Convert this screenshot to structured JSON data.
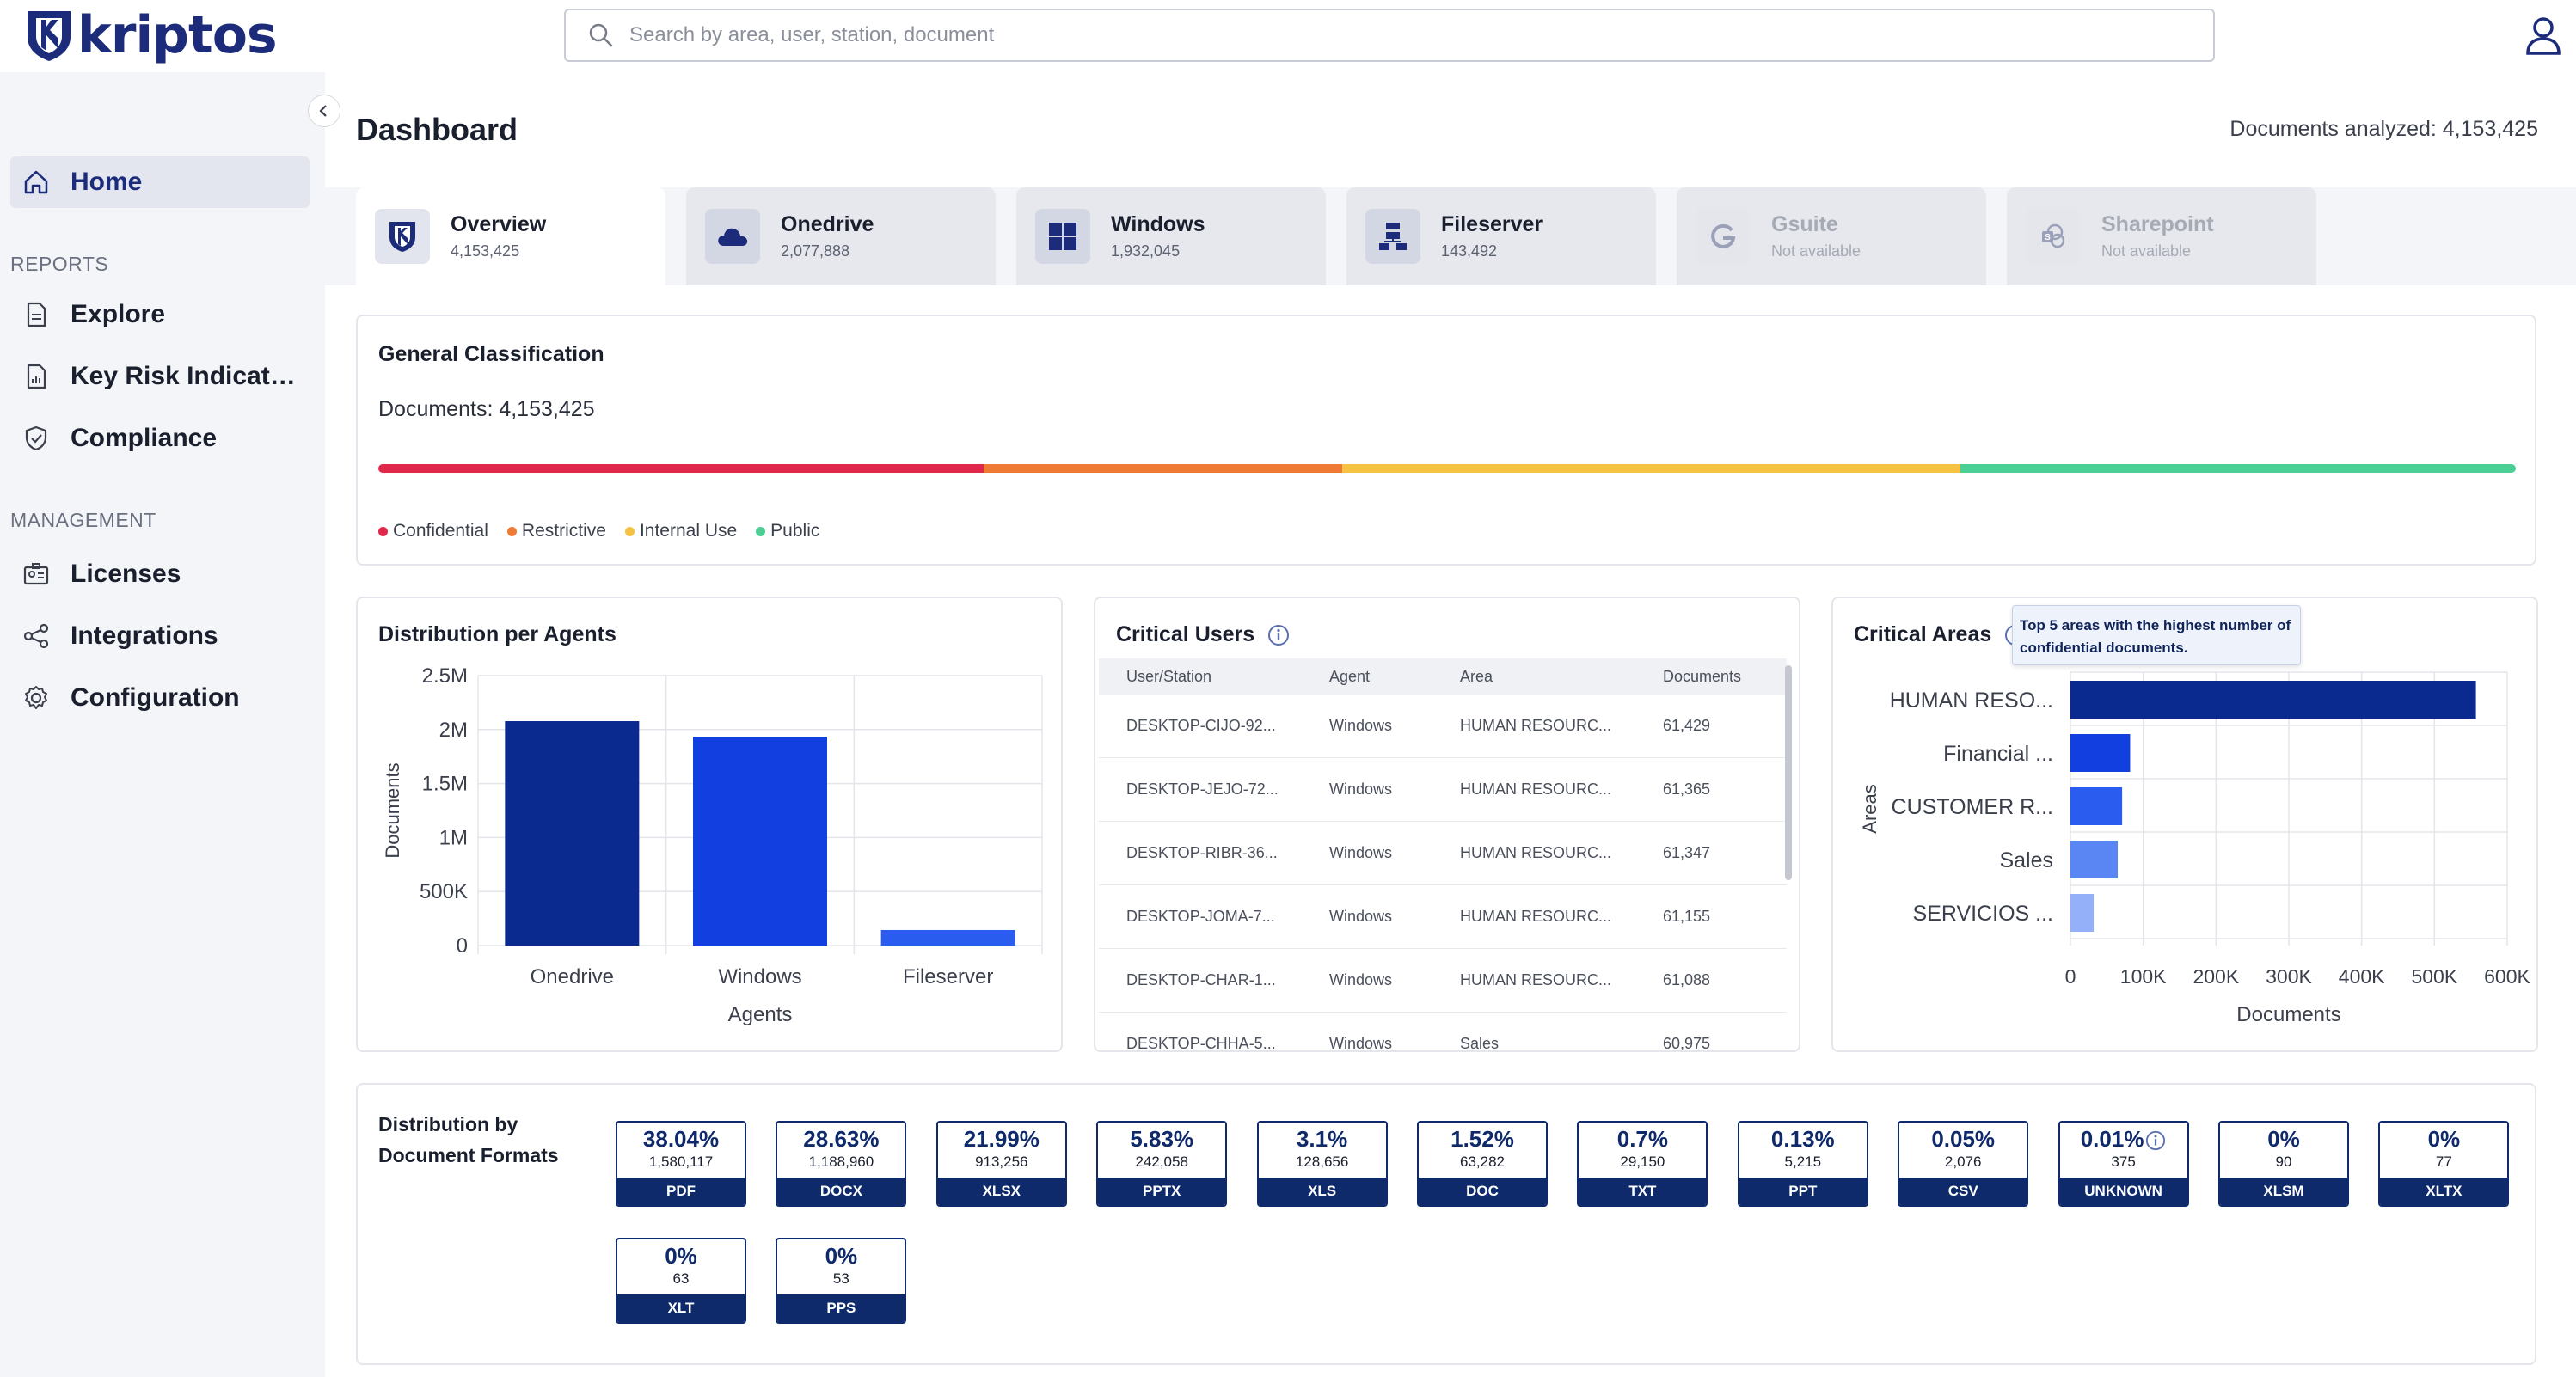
{
  "app": {
    "brand": "kriptos",
    "search_placeholder": "Search by area, user, station, document"
  },
  "sidebar": {
    "home": "Home",
    "reports_section": "REPORTS",
    "reports": [
      "Explore",
      "Key Risk Indicato...",
      "Compliance"
    ],
    "management_section": "MANAGEMENT",
    "management": [
      "Licenses",
      "Integrations",
      "Configuration"
    ]
  },
  "header": {
    "title": "Dashboard",
    "documents_analyzed": "Documents analyzed: 4,153,425"
  },
  "tabs": [
    {
      "name": "Overview",
      "sub": "4,153,425",
      "icon": "shield-icon"
    },
    {
      "name": "Onedrive",
      "sub": "2,077,888",
      "icon": "cloud-icon"
    },
    {
      "name": "Windows",
      "sub": "1,932,045",
      "icon": "windows-icon"
    },
    {
      "name": "Fileserver",
      "sub": "143,492",
      "icon": "server-icon"
    },
    {
      "name": "Gsuite",
      "sub": "Not available",
      "icon": "google-icon"
    },
    {
      "name": "Sharepoint",
      "sub": "Not available",
      "icon": "sharepoint-icon"
    }
  ],
  "general_classification": {
    "title": "General Classification",
    "documents": "Documents: 4,153,425",
    "segments": [
      {
        "label": "Confidential",
        "fraction": 0.283,
        "color": "#e0284a"
      },
      {
        "label": "Restrictive",
        "fraction": 0.168,
        "color": "#ee7a35"
      },
      {
        "label": "Internal Use",
        "fraction": 0.289,
        "color": "#f5c242"
      },
      {
        "label": "Public",
        "fraction": 0.26,
        "color": "#4ccf94"
      }
    ]
  },
  "chart_data": [
    {
      "type": "bar",
      "title": "Distribution per Agents",
      "xlabel": "Agents",
      "ylabel": "Documents",
      "categories": [
        "Onedrive",
        "Windows",
        "Fileserver"
      ],
      "values": [
        2077888,
        1932045,
        143492
      ],
      "ylim": [
        0,
        2500000
      ],
      "yticks": [
        0,
        500000,
        1000000,
        1500000,
        2000000,
        2500000
      ],
      "ytick_labels": [
        "0",
        "500K",
        "1M",
        "1.5M",
        "2M",
        "2.5M"
      ],
      "colors": [
        "#0b2a8f",
        "#1240e0",
        "#2a5cf0"
      ],
      "grid": true
    },
    {
      "type": "bar",
      "orientation": "horizontal",
      "title": "Critical Areas",
      "xlabel": "Documents",
      "ylabel": "Areas",
      "categories": [
        "HUMAN RESO...",
        "Financial ...",
        "CUSTOMER R...",
        "Sales",
        "SERVICIOS ..."
      ],
      "values": [
        557000,
        82000,
        71000,
        65000,
        32000
      ],
      "xlim": [
        0,
        600000
      ],
      "xticks": [
        0,
        100000,
        200000,
        300000,
        400000,
        500000,
        600000
      ],
      "xtick_labels": [
        "0",
        "100K",
        "200K",
        "300K",
        "400K",
        "500K",
        "600K"
      ],
      "colors": [
        "#0b2a8f",
        "#1240e0",
        "#2a5cf0",
        "#5a86f4",
        "#93b0f8"
      ],
      "grid": true,
      "tooltip": "Top 5 areas with the highest number of confidential documents."
    }
  ],
  "critical_users": {
    "title": "Critical Users",
    "columns": [
      "User/Station",
      "Agent",
      "Area",
      "Documents"
    ],
    "rows": [
      [
        "DESKTOP-CIJO-92...",
        "Windows",
        "HUMAN RESOURC...",
        "61,429"
      ],
      [
        "DESKTOP-JEJO-72...",
        "Windows",
        "HUMAN RESOURC...",
        "61,365"
      ],
      [
        "DESKTOP-RIBR-36...",
        "Windows",
        "HUMAN RESOURC...",
        "61,347"
      ],
      [
        "DESKTOP-JOMA-7...",
        "Windows",
        "HUMAN RESOURC...",
        "61,155"
      ],
      [
        "DESKTOP-CHAR-1...",
        "Windows",
        "HUMAN RESOURC...",
        "61,088"
      ],
      [
        "DESKTOP-CHHA-5...",
        "Windows",
        "Sales",
        "60,975"
      ]
    ]
  },
  "formats": {
    "title_line1": "Distribution by",
    "title_line2": "Document Formats",
    "items": [
      {
        "pct": "38.04%",
        "count": "1,580,117",
        "label": "PDF"
      },
      {
        "pct": "28.63%",
        "count": "1,188,960",
        "label": "DOCX"
      },
      {
        "pct": "21.99%",
        "count": "913,256",
        "label": "XLSX"
      },
      {
        "pct": "5.83%",
        "count": "242,058",
        "label": "PPTX"
      },
      {
        "pct": "3.1%",
        "count": "128,656",
        "label": "XLS"
      },
      {
        "pct": "1.52%",
        "count": "63,282",
        "label": "DOC"
      },
      {
        "pct": "0.7%",
        "count": "29,150",
        "label": "TXT"
      },
      {
        "pct": "0.13%",
        "count": "5,215",
        "label": "PPT"
      },
      {
        "pct": "0.05%",
        "count": "2,076",
        "label": "CSV"
      },
      {
        "pct": "0.01%",
        "count": "375",
        "label": "UNKNOWN"
      },
      {
        "pct": "0%",
        "count": "90",
        "label": "XLSM"
      },
      {
        "pct": "0%",
        "count": "77",
        "label": "XLTX"
      },
      {
        "pct": "0%",
        "count": "63",
        "label": "XLT"
      },
      {
        "pct": "0%",
        "count": "53",
        "label": "PPS"
      }
    ]
  }
}
